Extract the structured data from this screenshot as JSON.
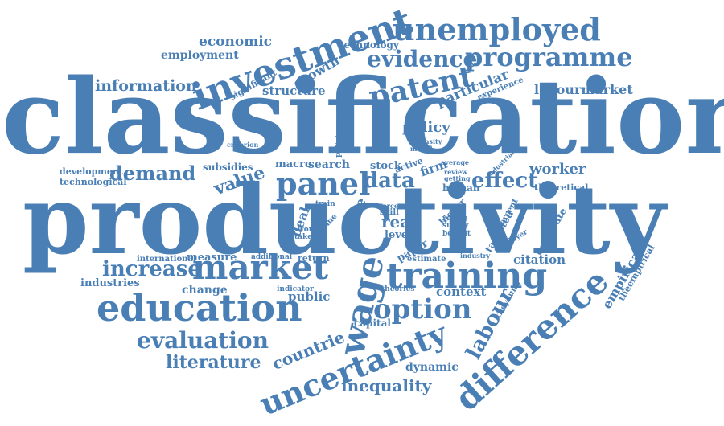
{
  "color": "#4a7fb5",
  "words": [
    {
      "id": "classification",
      "text": "classification"
    },
    {
      "id": "productivity",
      "text": "productivity"
    },
    {
      "id": "investment",
      "text": "investment"
    },
    {
      "id": "unemployed",
      "text": "unemployed"
    },
    {
      "id": "programme",
      "text": "programme"
    },
    {
      "id": "evidence",
      "text": "evidence"
    },
    {
      "id": "patent",
      "text": "patent"
    },
    {
      "id": "economic",
      "text": "economic"
    },
    {
      "id": "employment",
      "text": "employment"
    },
    {
      "id": "technology",
      "text": "technology"
    },
    {
      "id": "growth",
      "text": "growth"
    },
    {
      "id": "information",
      "text": "information"
    },
    {
      "id": "significant",
      "text": "significant"
    },
    {
      "id": "structure",
      "text": "structure"
    },
    {
      "id": "particular",
      "text": "particular"
    },
    {
      "id": "experience",
      "text": "experience"
    },
    {
      "id": "labourmarket",
      "text": "labourmarket"
    },
    {
      "id": "policy",
      "text": "policy"
    },
    {
      "id": "criterion",
      "text": "criterion"
    },
    {
      "id": "policies",
      "text": "policies"
    },
    {
      "id": "intensity",
      "text": "intensity"
    },
    {
      "id": "model",
      "text": "model"
    },
    {
      "id": "average",
      "text": "average"
    },
    {
      "id": "review",
      "text": "review"
    },
    {
      "id": "getting",
      "text": "getting"
    },
    {
      "id": "industrial",
      "text": "industrial"
    },
    {
      "id": "development",
      "text": "development"
    },
    {
      "id": "technological",
      "text": "technological"
    },
    {
      "id": "demand",
      "text": "demand"
    },
    {
      "id": "subsidies",
      "text": "subsidies"
    },
    {
      "id": "value",
      "text": "value"
    },
    {
      "id": "macro",
      "text": "macro"
    },
    {
      "id": "search",
      "text": "search"
    },
    {
      "id": "stock",
      "text": "stock"
    },
    {
      "id": "active",
      "text": "active"
    },
    {
      "id": "firm",
      "text": "firm"
    },
    {
      "id": "panel",
      "text": "panel"
    },
    {
      "id": "data",
      "text": "data"
    },
    {
      "id": "human",
      "text": "human"
    },
    {
      "id": "effect",
      "text": "effect"
    },
    {
      "id": "worker",
      "text": "worker"
    },
    {
      "id": "theoretical",
      "text": "theoretical"
    },
    {
      "id": "deal",
      "text": "deal"
    },
    {
      "id": "train",
      "text": "train"
    },
    {
      "id": "scheme",
      "text": "scheme"
    },
    {
      "id": "more",
      "text": "more"
    },
    {
      "id": "force",
      "text": "force"
    },
    {
      "id": "skill",
      "text": "skill"
    },
    {
      "id": "real",
      "text": "real"
    },
    {
      "id": "level",
      "text": "level"
    },
    {
      "id": "higher",
      "text": "higher"
    },
    {
      "id": "young",
      "text": "young"
    },
    {
      "id": "survey",
      "text": "survey"
    },
    {
      "id": "benefit",
      "text": "benefit"
    },
    {
      "id": "targeted",
      "text": "targeted"
    },
    {
      "id": "percent",
      "text": "percent"
    },
    {
      "id": "employer",
      "text": "employer"
    },
    {
      "id": "corporate",
      "text": "corporate"
    },
    {
      "id": "work",
      "text": "work"
    },
    {
      "id": "takeup",
      "text": "takeup"
    },
    {
      "id": "international",
      "text": "international"
    },
    {
      "id": "measure",
      "text": "measure"
    },
    {
      "id": "additional",
      "text": "additional"
    },
    {
      "id": "return",
      "text": "return"
    },
    {
      "id": "paper",
      "text": "paper"
    },
    {
      "id": "estimate",
      "text": "estimate"
    },
    {
      "id": "industry",
      "text": "industry"
    },
    {
      "id": "citation",
      "text": "citation"
    },
    {
      "id": "increase",
      "text": "increase"
    },
    {
      "id": "market",
      "text": "market"
    },
    {
      "id": "training",
      "text": "training"
    },
    {
      "id": "wage",
      "text": "wage"
    },
    {
      "id": "industries",
      "text": "industries"
    },
    {
      "id": "change",
      "text": "change"
    },
    {
      "id": "indicator",
      "text": "indicator"
    },
    {
      "id": "public",
      "text": "public"
    },
    {
      "id": "theories",
      "text": "theories"
    },
    {
      "id": "context",
      "text": "context"
    },
    {
      "id": "education",
      "text": "education"
    },
    {
      "id": "option",
      "text": "option"
    },
    {
      "id": "labour",
      "text": "labour"
    },
    {
      "id": "theyoung",
      "text": "theyoung"
    },
    {
      "id": "empirical",
      "text": "empirical"
    },
    {
      "id": "theempirical",
      "text": "theempirical"
    },
    {
      "id": "difference",
      "text": "difference"
    },
    {
      "id": "evaluation",
      "text": "evaluation"
    },
    {
      "id": "capital",
      "text": "capital"
    },
    {
      "id": "countrie",
      "text": "countrie"
    },
    {
      "id": "literature",
      "text": "literature"
    },
    {
      "id": "uncertainty",
      "text": "uncertainty"
    },
    {
      "id": "dynamic",
      "text": "dynamic"
    },
    {
      "id": "inequality",
      "text": "inequality"
    }
  ]
}
